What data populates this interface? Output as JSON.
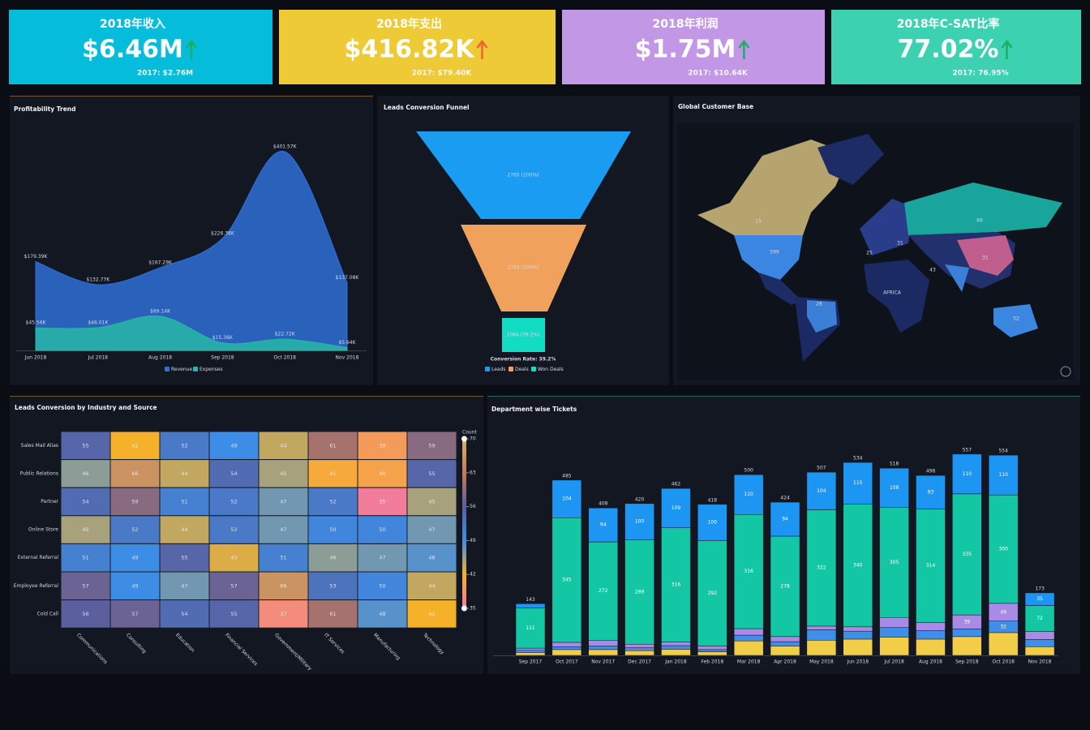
{
  "kpis": [
    {
      "title": "2018年收入",
      "value": "$6.46M",
      "previous": "2017: $2.76M",
      "color": "#06bcdb",
      "trend_color": "#1cae62"
    },
    {
      "title": "2018年支出",
      "value": "$416.82K",
      "previous": "2017: $79.40K",
      "color": "#edca36",
      "trend_color": "#f0632a"
    },
    {
      "title": "2018年利润",
      "value": "$1.75M",
      "previous": "2017: $10.64K",
      "color": "#c298e6",
      "trend_color": "#1cae62"
    },
    {
      "title": "2018年C-SAT比率",
      "value": "77.02%",
      "previous": "2017: 76.95%",
      "color": "#3cd2b1",
      "trend_color": "#1cae62"
    }
  ],
  "chart_data": [
    {
      "type": "area",
      "title": "Profitability Trend",
      "categories": [
        "Jun 2018",
        "Jul 2018",
        "Aug 2018",
        "Sep 2018",
        "Oct 2018",
        "Nov 2018"
      ],
      "series": [
        {
          "name": "Revenue",
          "color": "#2f6fd6",
          "values": [
            179.39,
            132.77,
            167.29,
            226.38,
            401.57,
            137.08
          ],
          "value_labels": [
            "$179.39K",
            "$132.77K",
            "$167.29K",
            "$226.38K",
            "$401.57K",
            "$137.08K"
          ]
        },
        {
          "name": "Expenses",
          "color": "#27b7a6",
          "values": [
            45.56,
            46.01,
            69.14,
            15.36,
            22.72,
            5.64
          ],
          "value_labels": [
            "$45.56K",
            "$46.01K",
            "$69.14K",
            "$15.36K",
            "$22.72K",
            "$5.64K"
          ]
        }
      ]
    },
    {
      "type": "funnel",
      "title": "Leads Conversion Funnel",
      "categories": [
        "Leads",
        "Deals",
        "Won Deals"
      ],
      "values": [
        2765,
        2763,
        1084
      ],
      "value_labels": [
        "2765 (100%)",
        "2763 (100%)",
        "1084 (39.2%)"
      ],
      "colors": [
        "#1a9cf2",
        "#f0a25c",
        "#12dcc2"
      ],
      "annotation": "Conversion Rate: 39.2%"
    },
    {
      "type": "map",
      "title": "Global Customer Base",
      "values": [
        15,
        599,
        66,
        31,
        25,
        43,
        31,
        28,
        52
      ],
      "annotations": [
        "AFRICA"
      ]
    },
    {
      "type": "heatmap",
      "title": "Leads Conversion by Industry and Source",
      "rows": [
        "Sales Mail Alias",
        "Public Relations",
        "Partner",
        "Online Store",
        "External Referral",
        "Employee Referral",
        "Cold Call"
      ],
      "columns": [
        "Communications",
        "Consulting",
        "Education",
        "Financial Services",
        "Government/Military",
        "IT Services",
        "Manufacturing",
        "Technology"
      ],
      "values": [
        [
          55,
          42,
          52,
          49,
          44,
          61,
          39,
          59
        ],
        [
          46,
          66,
          44,
          54,
          45,
          41,
          40,
          55
        ],
        [
          54,
          59,
          51,
          52,
          47,
          52,
          35,
          45
        ],
        [
          45,
          52,
          44,
          52,
          47,
          50,
          50,
          47
        ],
        [
          51,
          49,
          55,
          43,
          51,
          46,
          47,
          48
        ],
        [
          57,
          49,
          47,
          57,
          66,
          53,
          50,
          44
        ],
        [
          56,
          57,
          54,
          55,
          37,
          61,
          48,
          42
        ]
      ],
      "colorbar": {
        "title": "Count",
        "ticks": [
          70,
          63,
          56,
          49,
          42,
          35
        ],
        "colors": [
          "#d4b46a",
          "#c47a5a",
          "#5b5f9e",
          "#3d8de6",
          "#f6b12b",
          "#f27d9b"
        ]
      }
    },
    {
      "type": "stacked_bar",
      "title": "Department wise Tickets",
      "categories": [
        "Sep 2017",
        "Oct 2017",
        "Nov 2017",
        "Dec 2017",
        "Jan 2018",
        "Feb 2018",
        "Mar 2018",
        "Apr 2018",
        "May 2018",
        "Jun 2018",
        "Jul 2018",
        "Aug 2018",
        "Sep 2018",
        "Oct 2018",
        "Nov 2018"
      ],
      "totals": [
        143,
        485,
        408,
        420,
        462,
        418,
        500,
        424,
        507,
        534,
        518,
        498,
        557,
        554,
        173
      ],
      "series": [
        {
          "color": "#f2cd48",
          "values": [
            8,
            16,
            16,
            13,
            17,
            10,
            40,
            26,
            42,
            45,
            50,
            45,
            52,
            63,
            24
          ]
        },
        {
          "color": "#3f8fe8",
          "values": [
            6,
            8,
            10,
            8,
            10,
            6,
            16,
            12,
            29,
            22,
            27,
            24,
            21,
            32,
            20
          ]
        },
        {
          "color": "#a98ae6",
          "values": [
            6,
            12,
            16,
            10,
            10,
            10,
            18,
            14,
            10,
            12,
            28,
            22,
            39,
            49,
            22
          ]
        },
        {
          "color": "#14c7a4",
          "values": [
            111,
            345,
            272,
            289,
            316,
            292,
            316,
            278,
            322,
            340,
            305,
            314,
            335,
            300,
            72
          ]
        },
        {
          "color": "#1d95f2",
          "values": [
            12,
            104,
            94,
            100,
            109,
            100,
            110,
            94,
            104,
            115,
            108,
            93,
            110,
            110,
            35
          ]
        }
      ]
    }
  ]
}
